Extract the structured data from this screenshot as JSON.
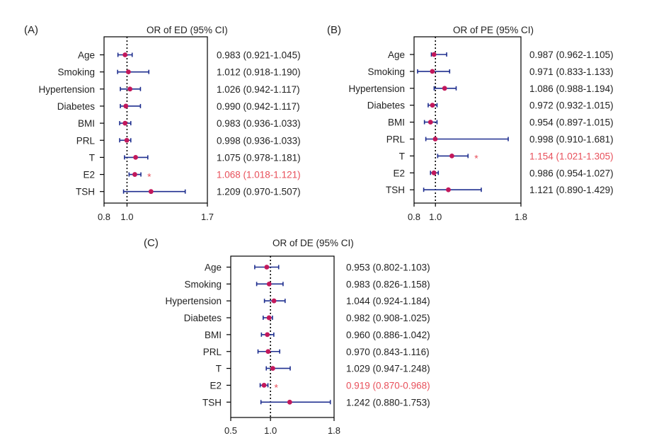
{
  "colors": {
    "ci": "#1f2f8f",
    "point": "#c2185b",
    "sig": "#e8505b",
    "axis": "#000000"
  },
  "chart_data": [
    {
      "type": "forest",
      "panel": "(A)",
      "title": "OR of ED (95% CI)",
      "xlim": [
        0.8,
        1.7
      ],
      "xticks": [
        "0.8",
        "1.0",
        "1.7"
      ],
      "reference": 1.0,
      "rows": [
        {
          "label": "Age",
          "or": 0.983,
          "lo": 0.921,
          "hi": 1.045,
          "text": "0.983 (0.921-1.045)",
          "sig": false
        },
        {
          "label": "Smoking",
          "or": 1.012,
          "lo": 0.918,
          "hi": 1.19,
          "text": "1.012 (0.918-1.190)",
          "sig": false
        },
        {
          "label": "Hypertension",
          "or": 1.026,
          "lo": 0.942,
          "hi": 1.117,
          "text": "1.026 (0.942-1.117)",
          "sig": false
        },
        {
          "label": "Diabetes",
          "or": 0.99,
          "lo": 0.942,
          "hi": 1.117,
          "text": "0.990 (0.942-1.117)",
          "sig": false
        },
        {
          "label": "BMI",
          "or": 0.983,
          "lo": 0.936,
          "hi": 1.033,
          "text": "0.983 (0.936-1.033)",
          "sig": false
        },
        {
          "label": "PRL",
          "or": 0.998,
          "lo": 0.936,
          "hi": 1.033,
          "text": "0.998 (0.936-1.033)",
          "sig": false
        },
        {
          "label": "T",
          "or": 1.075,
          "lo": 0.978,
          "hi": 1.181,
          "text": "1.075 (0.978-1.181)",
          "sig": false
        },
        {
          "label": "E2",
          "or": 1.068,
          "lo": 1.018,
          "hi": 1.121,
          "text": "1.068 (1.018-1.121)",
          "sig": true
        },
        {
          "label": "TSH",
          "or": 1.209,
          "lo": 0.97,
          "hi": 1.507,
          "text": "1.209 (0.970-1.507)",
          "sig": false
        }
      ]
    },
    {
      "type": "forest",
      "panel": "(B)",
      "title": "OR of PE (95% CI)",
      "xlim": [
        0.8,
        1.8
      ],
      "xticks": [
        "0.8",
        "1.0",
        "1.8"
      ],
      "reference": 1.0,
      "rows": [
        {
          "label": "Age",
          "or": 0.987,
          "lo": 0.962,
          "hi": 1.105,
          "text": "0.987 (0.962-1.105)",
          "sig": false
        },
        {
          "label": "Smoking",
          "or": 0.971,
          "lo": 0.833,
          "hi": 1.133,
          "text": "0.971 (0.833-1.133)",
          "sig": false
        },
        {
          "label": "Hypertension",
          "or": 1.086,
          "lo": 0.988,
          "hi": 1.194,
          "text": "1.086 (0.988-1.194)",
          "sig": false
        },
        {
          "label": "Diabetes",
          "or": 0.972,
          "lo": 0.932,
          "hi": 1.015,
          "text": "0.972 (0.932-1.015)",
          "sig": false
        },
        {
          "label": "BMI",
          "or": 0.954,
          "lo": 0.897,
          "hi": 1.015,
          "text": "0.954 (0.897-1.015)",
          "sig": false
        },
        {
          "label": "PRL",
          "or": 0.998,
          "lo": 0.91,
          "hi": 1.681,
          "text": "0.998 (0.910-1.681)",
          "sig": false
        },
        {
          "label": "T",
          "or": 1.154,
          "lo": 1.021,
          "hi": 1.305,
          "text": "1.154 (1.021-1.305)",
          "sig": true
        },
        {
          "label": "E2",
          "or": 0.986,
          "lo": 0.954,
          "hi": 1.027,
          "text": "0.986 (0.954-1.027)",
          "sig": false
        },
        {
          "label": "TSH",
          "or": 1.121,
          "lo": 0.89,
          "hi": 1.429,
          "text": "1.121 (0.890-1.429)",
          "sig": false
        }
      ]
    },
    {
      "type": "forest",
      "panel": "(C)",
      "title": "OR of DE (95% CI)",
      "xlim": [
        0.5,
        1.8
      ],
      "xticks": [
        "0.5",
        "1.0",
        "1.8"
      ],
      "reference": 1.0,
      "rows": [
        {
          "label": "Age",
          "or": 0.953,
          "lo": 0.802,
          "hi": 1.103,
          "text": "0.953 (0.802-1.103)",
          "sig": false
        },
        {
          "label": "Smoking",
          "or": 0.983,
          "lo": 0.826,
          "hi": 1.158,
          "text": "0.983 (0.826-1.158)",
          "sig": false
        },
        {
          "label": "Hypertension",
          "or": 1.044,
          "lo": 0.924,
          "hi": 1.184,
          "text": "1.044 (0.924-1.184)",
          "sig": false
        },
        {
          "label": "Diabetes",
          "or": 0.982,
          "lo": 0.908,
          "hi": 1.025,
          "text": "0.982 (0.908-1.025)",
          "sig": false
        },
        {
          "label": "BMI",
          "or": 0.96,
          "lo": 0.886,
          "hi": 1.042,
          "text": "0.960 (0.886-1.042)",
          "sig": false
        },
        {
          "label": "PRL",
          "or": 0.97,
          "lo": 0.843,
          "hi": 1.116,
          "text": "0.970 (0.843-1.116)",
          "sig": false
        },
        {
          "label": "T",
          "or": 1.029,
          "lo": 0.947,
          "hi": 1.248,
          "text": "1.029 (0.947-1.248)",
          "sig": false
        },
        {
          "label": "E2",
          "or": 0.919,
          "lo": 0.87,
          "hi": 0.968,
          "text": "0.919 (0.870-0.968)",
          "sig": true
        },
        {
          "label": "TSH",
          "or": 1.242,
          "lo": 0.88,
          "hi": 1.753,
          "text": "1.242 (0.880-1.753)",
          "sig": false
        }
      ]
    }
  ]
}
